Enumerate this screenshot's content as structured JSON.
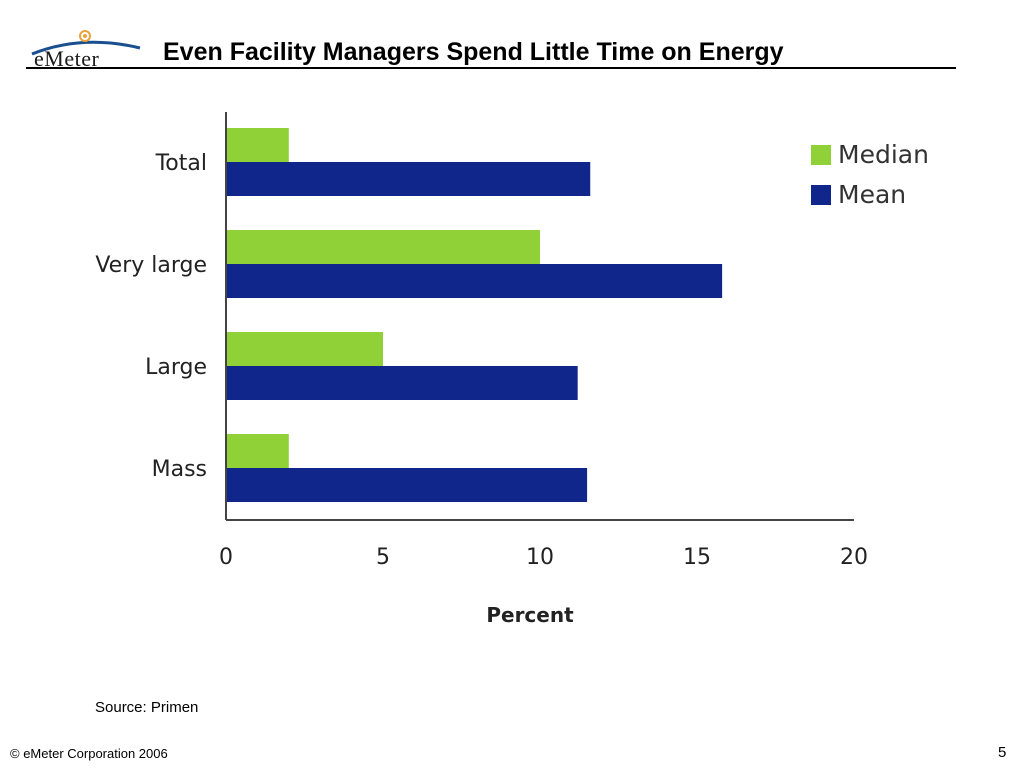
{
  "header": {
    "logo_text": "eMeter",
    "title": "Even Facility Managers Spend Little Time on Energy"
  },
  "footer": {
    "source": "Source: Primen",
    "copyright": "© eMeter Corporation 2006",
    "page_number": "5"
  },
  "colors": {
    "median": "#8fd136",
    "mean": "#10268a"
  },
  "chart_data": {
    "type": "bar",
    "orientation": "horizontal",
    "categories": [
      "Total",
      "Very large",
      "Large",
      "Mass"
    ],
    "series": [
      {
        "name": "Median",
        "values": [
          2,
          10,
          5,
          2
        ]
      },
      {
        "name": "Mean",
        "values": [
          11.6,
          15.8,
          11.2,
          11.5
        ]
      }
    ],
    "xlabel": "Percent",
    "ylabel": "",
    "xlim": [
      0,
      20
    ],
    "xticks": [
      "0",
      "5",
      "10",
      "15",
      "20"
    ],
    "grid": false,
    "legend": "top-right"
  }
}
